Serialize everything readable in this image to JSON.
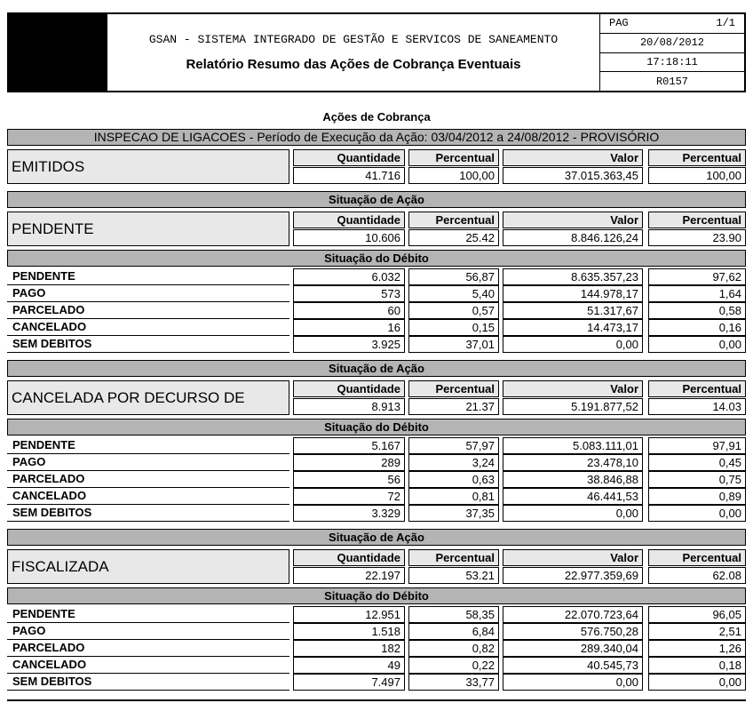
{
  "header": {
    "system_title": "GSAN - SISTEMA INTEGRADO DE GESTÃO E SERVICOS DE SANEAMENTO",
    "report_title": "Relatório Resumo das Ações de Cobrança Eventuais",
    "page_label": "PAG",
    "page_value": "1/1",
    "date": "20/08/2012",
    "time": "17:18:11",
    "report_code": "R0157"
  },
  "page_title": "Ações de Cobrança",
  "period_banner": "INSPECAO DE LIGACOES - Período de Execução da Ação: 03/04/2012 a 24/08/2012 - PROVISÓRIO",
  "banners": {
    "situacao_acao": "Situação de Ação",
    "situacao_debito": "Situação do Débito"
  },
  "columns": [
    "Quantidade",
    "Percentual",
    "Valor",
    "Percentual"
  ],
  "emitidos": {
    "label": "EMITIDOS",
    "quantidade": "41.716",
    "percentual": "100,00",
    "valor": "37.015.363,45",
    "valor_percentual": "100,00"
  },
  "sections": [
    {
      "label": "PENDENTE",
      "summary": {
        "quantidade": "10.606",
        "percentual": "25.42",
        "valor": "8.846.126,24",
        "valor_percentual": "23.90"
      },
      "debitos": [
        {
          "label": "PENDENTE",
          "quantidade": "6.032",
          "percentual": "56,87",
          "valor": "8.635.357,23",
          "valor_percentual": "97,62"
        },
        {
          "label": "PAGO",
          "quantidade": "573",
          "percentual": "5,40",
          "valor": "144.978,17",
          "valor_percentual": "1,64"
        },
        {
          "label": "PARCELADO",
          "quantidade": "60",
          "percentual": "0,57",
          "valor": "51.317,67",
          "valor_percentual": "0,58"
        },
        {
          "label": "CANCELADO",
          "quantidade": "16",
          "percentual": "0,15",
          "valor": "14.473,17",
          "valor_percentual": "0,16"
        },
        {
          "label": "SEM DEBITOS",
          "quantidade": "3.925",
          "percentual": "37,01",
          "valor": "0,00",
          "valor_percentual": "0,00"
        }
      ]
    },
    {
      "label": "CANCELADA POR DECURSO DE",
      "summary": {
        "quantidade": "8.913",
        "percentual": "21.37",
        "valor": "5.191.877,52",
        "valor_percentual": "14.03"
      },
      "debitos": [
        {
          "label": "PENDENTE",
          "quantidade": "5.167",
          "percentual": "57,97",
          "valor": "5.083.111,01",
          "valor_percentual": "97,91"
        },
        {
          "label": "PAGO",
          "quantidade": "289",
          "percentual": "3,24",
          "valor": "23.478,10",
          "valor_percentual": "0,45"
        },
        {
          "label": "PARCELADO",
          "quantidade": "56",
          "percentual": "0,63",
          "valor": "38.846,88",
          "valor_percentual": "0,75"
        },
        {
          "label": "CANCELADO",
          "quantidade": "72",
          "percentual": "0,81",
          "valor": "46.441,53",
          "valor_percentual": "0,89"
        },
        {
          "label": "SEM DEBITOS",
          "quantidade": "3.329",
          "percentual": "37,35",
          "valor": "0,00",
          "valor_percentual": "0,00"
        }
      ]
    },
    {
      "label": "FISCALIZADA",
      "summary": {
        "quantidade": "22.197",
        "percentual": "53.21",
        "valor": "22.977.359,69",
        "valor_percentual": "62.08"
      },
      "debitos": [
        {
          "label": "PENDENTE",
          "quantidade": "12.951",
          "percentual": "58,35",
          "valor": "22.070.723,64",
          "valor_percentual": "96,05"
        },
        {
          "label": "PAGO",
          "quantidade": "1.518",
          "percentual": "6,84",
          "valor": "576.750,28",
          "valor_percentual": "2,51"
        },
        {
          "label": "PARCELADO",
          "quantidade": "182",
          "percentual": "0,82",
          "valor": "289.340,04",
          "valor_percentual": "1,26"
        },
        {
          "label": "CANCELADO",
          "quantidade": "49",
          "percentual": "0,22",
          "valor": "40.545,73",
          "valor_percentual": "0,18"
        },
        {
          "label": "SEM DEBITOS",
          "quantidade": "7.497",
          "percentual": "33,77",
          "valor": "0,00",
          "valor_percentual": "0,00"
        }
      ]
    }
  ]
}
